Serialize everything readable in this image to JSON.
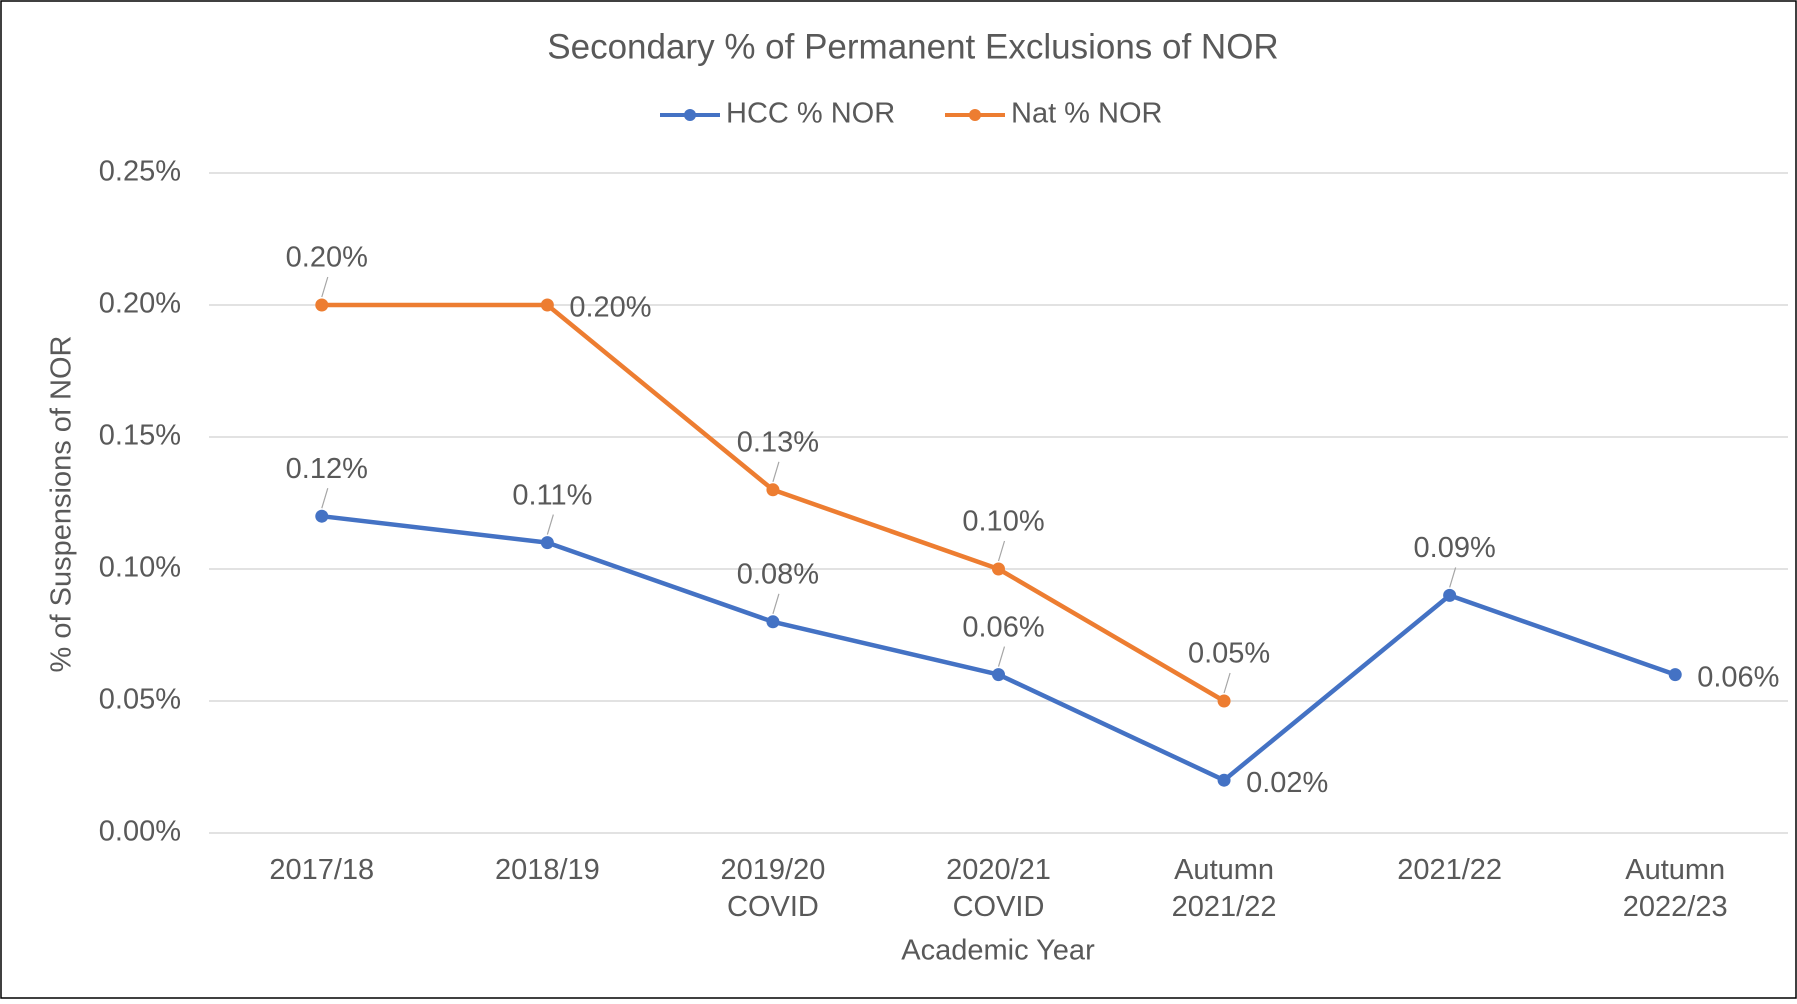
{
  "chart_data": {
    "type": "line",
    "title": "Secondary % of Permanent Exclusions of NOR",
    "x_label": "Academic Year",
    "y_label": "% of Suspensions of NOR",
    "categories": [
      "2017/18",
      "2018/19",
      "2019/20 COVID",
      "2020/21 COVID",
      "Autumn 2021/22",
      "2021/22",
      "Autumn 2022/23"
    ],
    "series": [
      {
        "name": "HCC % NOR",
        "color": "#4472c4",
        "values": [
          0.12,
          0.11,
          0.08,
          0.06,
          0.02,
          0.09,
          0.06
        ],
        "value_labels": [
          "0.12%",
          "0.11%",
          "0.08%",
          "0.06%",
          "0.02%",
          "0.09%",
          "0.06%"
        ]
      },
      {
        "name": "Nat % NOR",
        "color": "#ed7d31",
        "values": [
          0.2,
          0.2,
          0.13,
          0.1,
          0.05,
          null,
          null
        ],
        "value_labels": [
          "0.20%",
          "0.20%",
          "0.13%",
          "0.10%",
          "0.05%",
          null,
          null
        ]
      }
    ],
    "ylim": [
      0,
      0.25
    ],
    "yticks": [
      {
        "value": 0,
        "label": "0.00%"
      },
      {
        "value": 0.05,
        "label": "0.05%"
      },
      {
        "value": 0.1,
        "label": "0.10%"
      },
      {
        "value": 0.15,
        "label": "0.15%"
      },
      {
        "value": 0.2,
        "label": "0.20%"
      },
      {
        "value": 0.25,
        "label": "0.25%"
      }
    ],
    "grid": true,
    "legend": "top"
  }
}
